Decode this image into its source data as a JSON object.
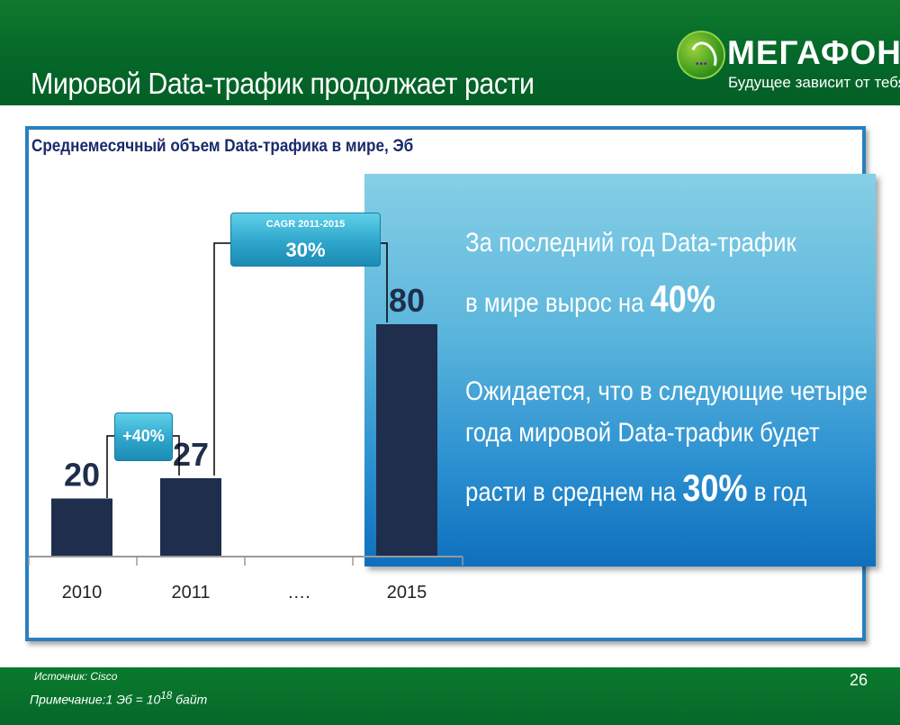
{
  "slide": {
    "title": "Мировой Data-трафик продолжает расти",
    "page_number": "26"
  },
  "logo": {
    "brand": "МЕГАФОН",
    "tagline": "Будущее зависит от тебя"
  },
  "callout": {
    "line1": "За последний год Data-трафик",
    "line2_prefix": "в мире вырос на ",
    "line2_value": "40%",
    "line3": "Ожидается, что в следующие четыре",
    "line4": "года мировой Data-трафик будет",
    "line5_prefix": "расти в среднем на ",
    "line5_value": "30%",
    "line5_suffix": " в год"
  },
  "annotations": {
    "cagr_label": "CAGR 2011-2015",
    "cagr_value": "30%",
    "growth_label": "+40%"
  },
  "footer": {
    "source": "Источник: Cisco",
    "note_prefix": "Примечание:1 Эб = 10",
    "note_exponent": "18",
    "note_suffix": " байт"
  },
  "colors": {
    "bar": "#1f2e4d",
    "header_green": "#05672a",
    "accent_blue": "#2a8fd0"
  },
  "chart_data": {
    "type": "bar",
    "title": "Среднемесячный объем Data-трафика в мире, Эб",
    "categories": [
      "2010",
      "2011",
      "….",
      "2015"
    ],
    "values": [
      20,
      27,
      null,
      80
    ],
    "value_labels": [
      "20",
      "27",
      "",
      "80"
    ],
    "ylim": [
      0,
      80
    ],
    "grid": false,
    "xlabel": "",
    "ylabel": ""
  }
}
